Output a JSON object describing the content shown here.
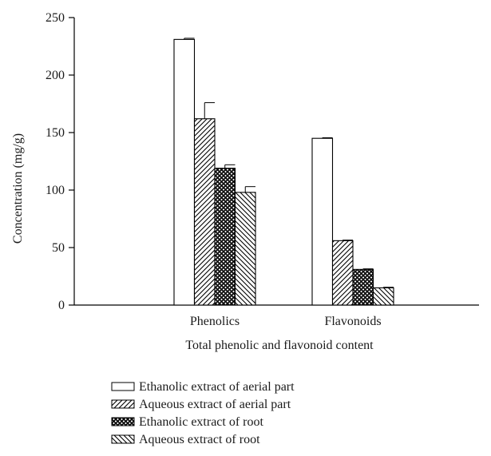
{
  "chart_data": {
    "type": "bar",
    "categories": [
      "Phenolics",
      "Flavonoids"
    ],
    "xlabel": "Total phenolic and flavonoid content",
    "ylabel": "Concentration (mg/g)",
    "ylim": [
      0,
      250
    ],
    "yticks": [
      0,
      50,
      100,
      150,
      200,
      250
    ],
    "grid": false,
    "legend_position": "bottom-left",
    "series": [
      {
        "name": "Ethanolic extract of aerial part",
        "pattern": "none",
        "values": [
          231,
          145
        ],
        "errors": [
          1,
          0.5
        ]
      },
      {
        "name": "Aqueous extract of aerial part",
        "pattern": "diagonal",
        "values": [
          162,
          56
        ],
        "errors": [
          14,
          0.5
        ]
      },
      {
        "name": "Ethanolic extract of root",
        "pattern": "crosshatch",
        "values": [
          119,
          31
        ],
        "errors": [
          3,
          0.5
        ]
      },
      {
        "name": "Aqueous extract of root",
        "pattern": "reverse-diagonal",
        "values": [
          98,
          15
        ],
        "errors": [
          5,
          0.5
        ]
      }
    ]
  }
}
